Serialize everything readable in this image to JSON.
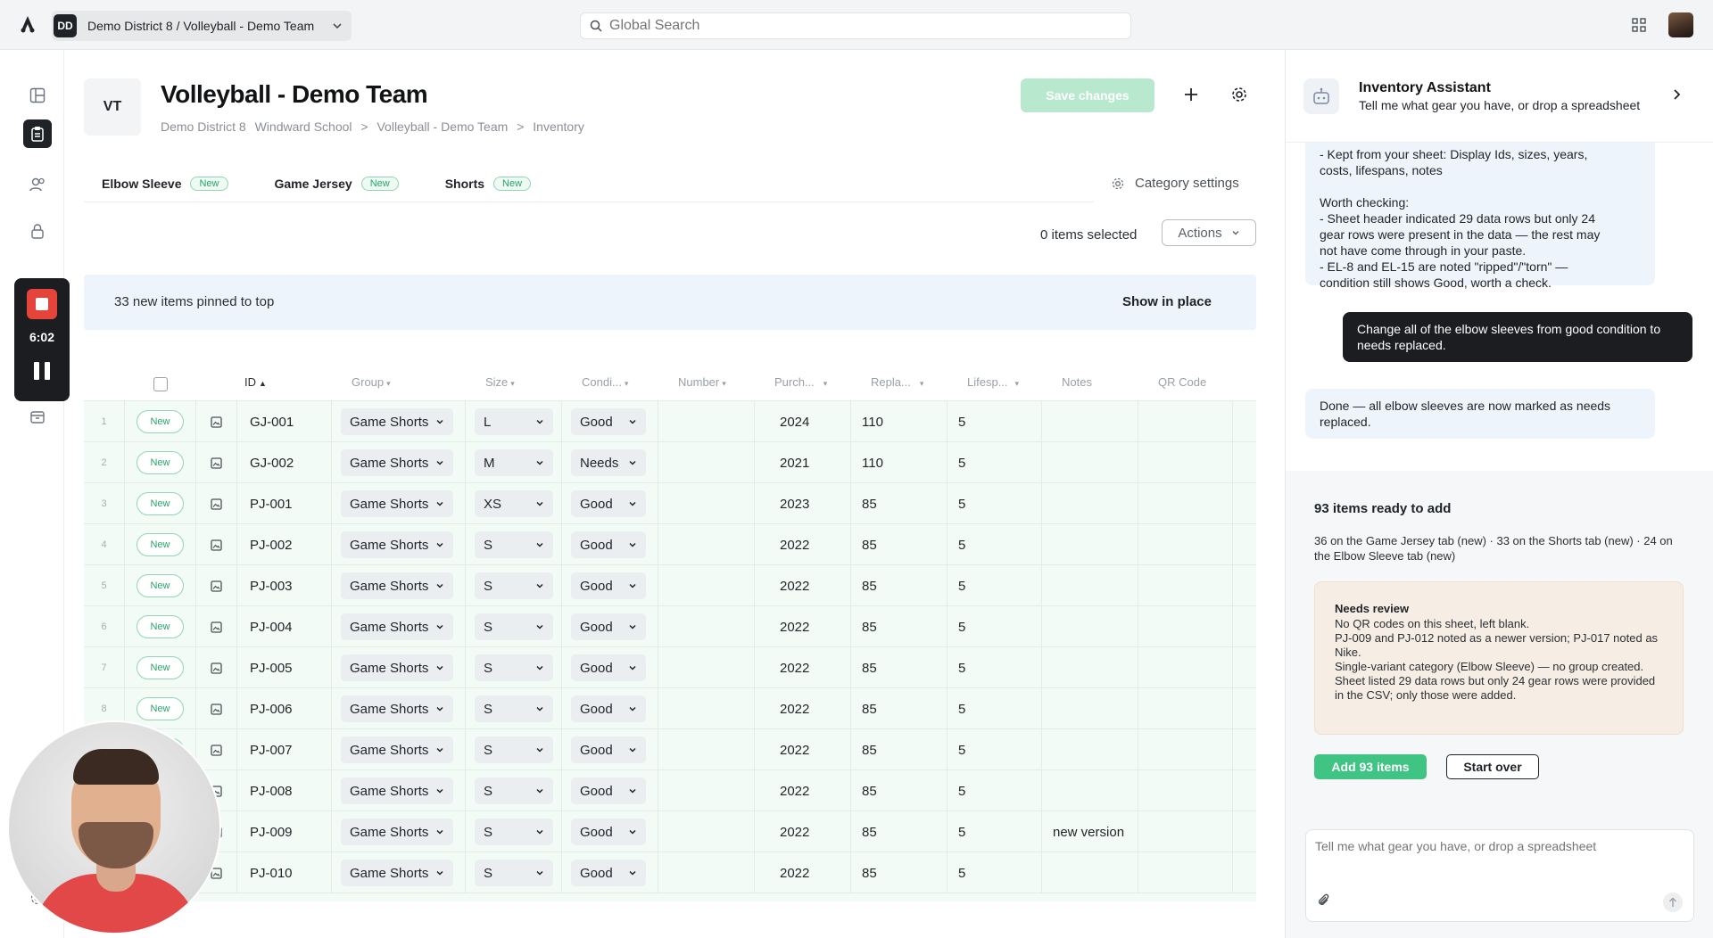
{
  "topbar": {
    "workspace_initials": "DD",
    "workspace_label": "Demo District 8 / Volleyball - Demo Team",
    "search_placeholder": "Global Search"
  },
  "recorder": {
    "time": "6:02"
  },
  "page": {
    "badge": "VT",
    "title": "Volleyball - Demo Team",
    "breadcrumb": [
      "Demo District 8",
      "Windward School",
      ">",
      "Volleyball - Demo Team",
      ">",
      "Inventory"
    ],
    "save_label": "Save changes"
  },
  "categories": {
    "tabs": [
      {
        "label": "Elbow Sleeve",
        "badge": "New"
      },
      {
        "label": "Game Jersey",
        "badge": "New"
      },
      {
        "label": "Shorts",
        "badge": "New"
      }
    ],
    "settings_label": "Category settings"
  },
  "selection": {
    "count_label": "0 items selected",
    "actions_label": "Actions"
  },
  "banner": {
    "text": "33 new items pinned to top",
    "action": "Show in place"
  },
  "table": {
    "columns": {
      "id": "ID",
      "group": "Group",
      "size": "Size",
      "condition": "Condi...",
      "number": "Number",
      "purchased": "Purch...",
      "replacement": "Repla...",
      "lifespan": "Lifesp...",
      "notes": "Notes",
      "qr": "QR Code"
    },
    "rows": [
      {
        "num": "1",
        "status": "New",
        "id": "GJ-001",
        "group": "Game Shorts",
        "size": "L",
        "condition": "Good",
        "purchased": "2024",
        "replacement": "110",
        "lifespan": "5",
        "notes": ""
      },
      {
        "num": "2",
        "status": "New",
        "id": "GJ-002",
        "group": "Game Shorts",
        "size": "M",
        "condition": "Needs",
        "purchased": "2021",
        "replacement": "110",
        "lifespan": "5",
        "notes": ""
      },
      {
        "num": "3",
        "status": "New",
        "id": "PJ-001",
        "group": "Game Shorts",
        "size": "XS",
        "condition": "Good",
        "purchased": "2023",
        "replacement": "85",
        "lifespan": "5",
        "notes": ""
      },
      {
        "num": "4",
        "status": "New",
        "id": "PJ-002",
        "group": "Game Shorts",
        "size": "S",
        "condition": "Good",
        "purchased": "2022",
        "replacement": "85",
        "lifespan": "5",
        "notes": ""
      },
      {
        "num": "5",
        "status": "New",
        "id": "PJ-003",
        "group": "Game Shorts",
        "size": "S",
        "condition": "Good",
        "purchased": "2022",
        "replacement": "85",
        "lifespan": "5",
        "notes": ""
      },
      {
        "num": "6",
        "status": "New",
        "id": "PJ-004",
        "group": "Game Shorts",
        "size": "S",
        "condition": "Good",
        "purchased": "2022",
        "replacement": "85",
        "lifespan": "5",
        "notes": ""
      },
      {
        "num": "7",
        "status": "New",
        "id": "PJ-005",
        "group": "Game Shorts",
        "size": "S",
        "condition": "Good",
        "purchased": "2022",
        "replacement": "85",
        "lifespan": "5",
        "notes": ""
      },
      {
        "num": "8",
        "status": "New",
        "id": "PJ-006",
        "group": "Game Shorts",
        "size": "S",
        "condition": "Good",
        "purchased": "2022",
        "replacement": "85",
        "lifespan": "5",
        "notes": ""
      },
      {
        "num": "9",
        "status": "New",
        "id": "PJ-007",
        "group": "Game Shorts",
        "size": "S",
        "condition": "Good",
        "purchased": "2022",
        "replacement": "85",
        "lifespan": "5",
        "notes": ""
      },
      {
        "num": "10",
        "status": "New",
        "id": "PJ-008",
        "group": "Game Shorts",
        "size": "S",
        "condition": "Good",
        "purchased": "2022",
        "replacement": "85",
        "lifespan": "5",
        "notes": ""
      },
      {
        "num": "11",
        "status": "New",
        "id": "PJ-009",
        "group": "Game Shorts",
        "size": "S",
        "condition": "Good",
        "purchased": "2022",
        "replacement": "85",
        "lifespan": "5",
        "notes": "new version"
      },
      {
        "num": "12",
        "status": "New",
        "id": "PJ-010",
        "group": "Game Shorts",
        "size": "S",
        "condition": "Good",
        "purchased": "2022",
        "replacement": "85",
        "lifespan": "5",
        "notes": ""
      }
    ]
  },
  "assistant": {
    "title": "Inventory Assistant",
    "subtitle": "Tell me what gear you have, or drop a spreadsheet",
    "messages": {
      "ai_1": [
        "- Kept from your sheet: Display Ids, sizes, years,",
        "costs, lifespans, notes",
        "",
        "Worth checking:",
        "- Sheet header indicated 29 data rows but only 24",
        "gear rows were present in the data — the rest may",
        "not have come through in your paste.",
        "- EL-8 and EL-15 are noted \"ripped\"/\"torn\" —",
        "condition still shows Good, worth a check."
      ],
      "user_1": "Change all of the elbow sleeves from good condition to needs replaced.",
      "ai_2": "Done — all elbow sleeves are now marked as needs replaced."
    },
    "ready": {
      "title": "93 items ready to add",
      "desc": "36 on the Game Jersey tab (new) · 33 on the Shorts tab (new) · 24 on the Elbow Sleeve tab (new)",
      "review_title": "Needs review",
      "review_lines": [
        "No QR codes on this sheet, left blank.",
        "PJ-009 and PJ-012 noted as a newer version; PJ-017 noted as Nike.",
        "Single-variant category (Elbow Sleeve) — no group created.",
        "Sheet listed 29 data rows but only 24 gear rows were provided in the CSV; only those were added."
      ],
      "add_label": "Add 93 items",
      "start_over_label": "Start over"
    },
    "composer_placeholder": "Tell me what gear you have, or drop a spreadsheet"
  },
  "colors": {
    "accent_green": "#3fc483",
    "save_disabled": "#b8e9cf",
    "row_new_bg": "#f3fbf6",
    "banner_bg": "#edf4fb",
    "review_bg": "#f6ede4",
    "recorder_red": "#e5443a"
  }
}
